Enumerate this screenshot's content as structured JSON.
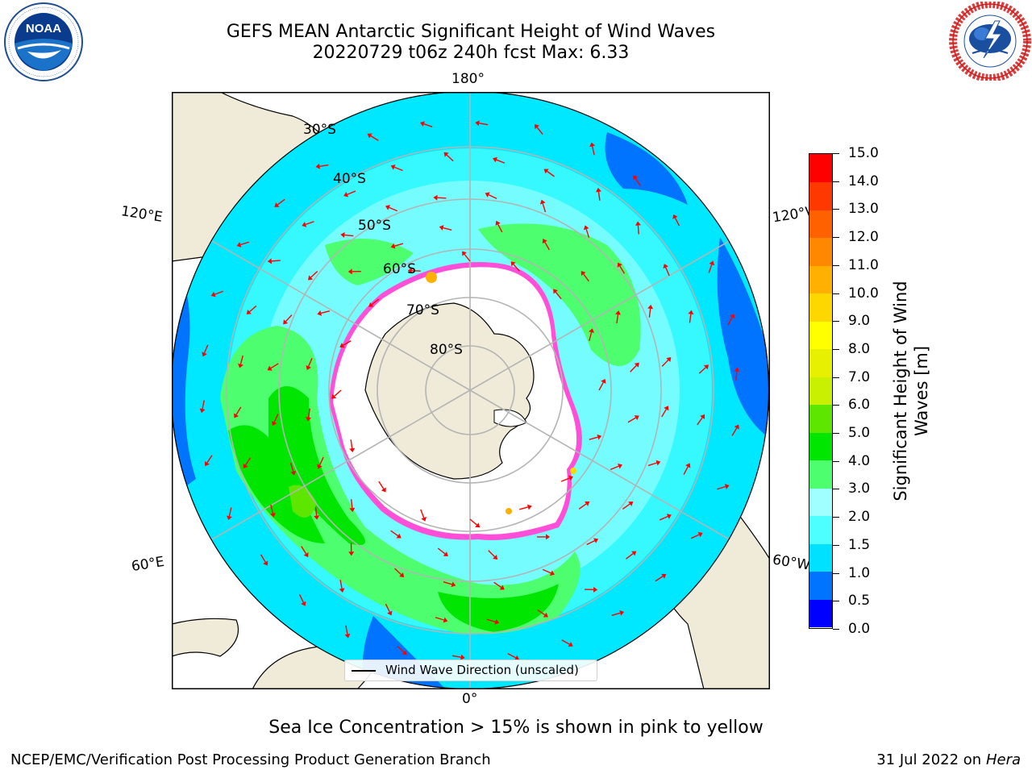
{
  "header": {
    "title_line1": "GEFS MEAN Antarctic Significant Height of Wind Waves",
    "title_line2": "20220729 t06z 240h fcst   Max: 6.33"
  },
  "logos": {
    "noaa": {
      "text": "NOAA",
      "ring_text": "NATIONAL OCEANIC AND ATMOSPHERIC ADMINISTRATION · U.S. DEPARTMENT OF COMMERCE"
    },
    "nws": {
      "ring_text": "NATIONAL WEATHER SERVICE"
    }
  },
  "map": {
    "projection": "south-polar-stereographic",
    "longitude_labels": {
      "top": "180°",
      "bottom": "0°",
      "upper_left": "120°E",
      "upper_right": "120°W",
      "lower_left": "60°E",
      "lower_right": "60°W"
    },
    "latitude_labels": [
      "30°S",
      "40°S",
      "50°S",
      "60°S",
      "70°S",
      "80°S"
    ],
    "legend_label": "Wind Wave Direction (unscaled)"
  },
  "colorbar": {
    "label": "Significant Height of Wind Waves [m]",
    "ticks": [
      "0.0",
      "0.5",
      "1.0",
      "1.5",
      "2.0",
      "3.0",
      "4.0",
      "5.0",
      "6.0",
      "7.0",
      "8.0",
      "9.0",
      "10.0",
      "11.0",
      "12.0",
      "13.0",
      "14.0",
      "15.0"
    ],
    "colors": [
      "#0000ff",
      "#0074ff",
      "#00e0ff",
      "#4dffff",
      "#a0ffff",
      "#4dff6e",
      "#00e600",
      "#5ce600",
      "#c8f000",
      "#e6f000",
      "#ffff00",
      "#ffd700",
      "#ffb000",
      "#ff8800",
      "#ff6000",
      "#ff3800",
      "#ff0000"
    ]
  },
  "footer": {
    "subtitle": "Sea Ice Concentration > 15% is shown in pink to yellow",
    "credit": "NCEP/EMC/Verification Post Processing Product Generation Branch",
    "date": "31 Jul 2022 on",
    "machine": "Hera"
  }
}
